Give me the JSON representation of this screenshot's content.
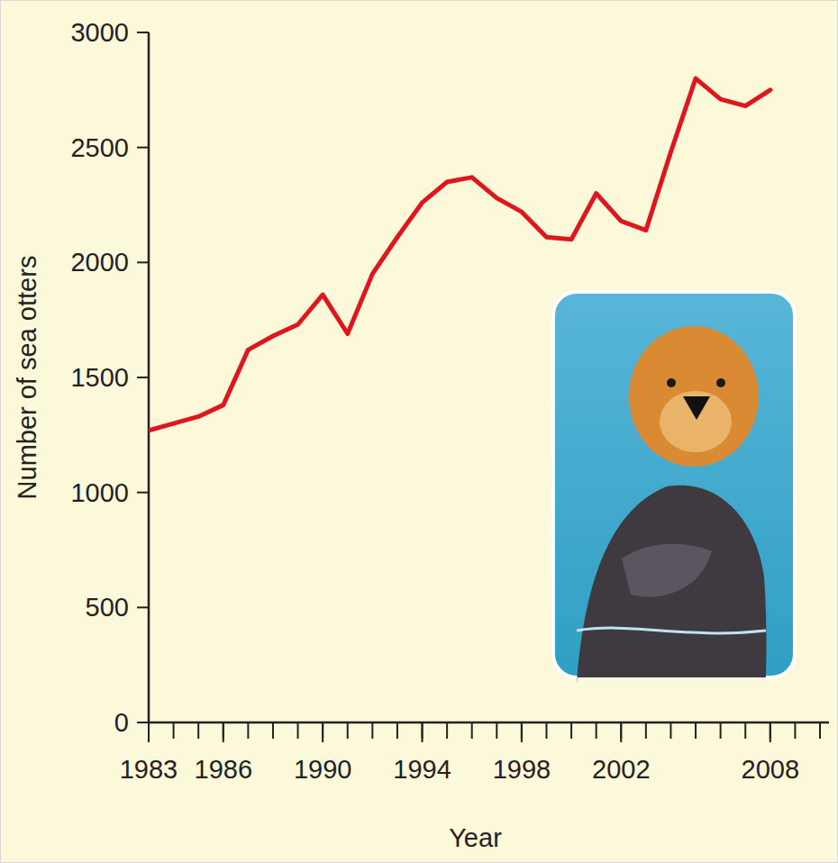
{
  "chart_data": {
    "type": "line",
    "x_label": "Year",
    "y_label": "Number of sea otters",
    "x": [
      1983,
      1984,
      1985,
      1986,
      1987,
      1988,
      1989,
      1990,
      1991,
      1992,
      1993,
      1994,
      1995,
      1996,
      1997,
      1998,
      1999,
      2000,
      2001,
      2002,
      2003,
      2004,
      2005,
      2006,
      2007,
      2008
    ],
    "values": [
      1270,
      1300,
      1330,
      1380,
      1620,
      1680,
      1730,
      1860,
      1690,
      1950,
      2110,
      2260,
      2350,
      2370,
      2280,
      2220,
      2110,
      2100,
      2300,
      2180,
      2140,
      2480,
      2800,
      2710,
      2680,
      2750
    ],
    "color": "#e0161f",
    "xlim": [
      1983,
      2010
    ],
    "xticks": [
      1983,
      1986,
      1990,
      1994,
      1998,
      2002,
      2008
    ],
    "ylim": [
      0,
      3000
    ],
    "yticks": [
      0,
      500,
      1000,
      1500,
      2000,
      2500,
      3000
    ],
    "grid": false
  }
}
